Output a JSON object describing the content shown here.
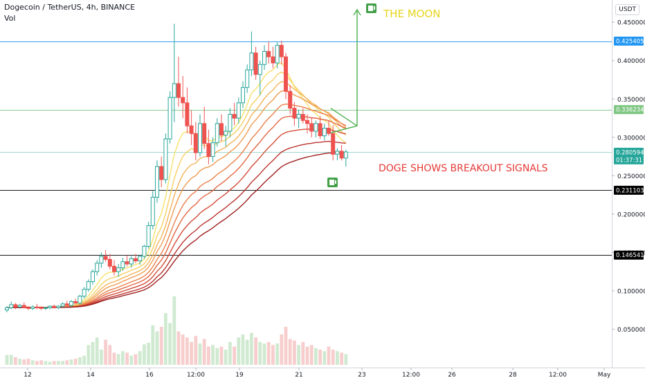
{
  "header": {
    "symbol_line": "Dogecoin / TetherUS, 4h, BINANCE",
    "volume_label": "Vol",
    "unit": "USDT"
  },
  "annotations": {
    "moon_label": "THE MOON",
    "breakout_label": "DOGE SHOWS BREAKOUT SIGNALS",
    "countdown": "01:37:31"
  },
  "colors": {
    "up": "#26a69a",
    "down": "#ef5350",
    "moon_text": "#e6d51b",
    "breakout_text": "#e53935",
    "arrow": "#4caf50",
    "line_blue": "#2196f3",
    "line_green": "#81c784",
    "line_black": "#000000",
    "ribbon": [
      "#f7e26b",
      "#f6cf62",
      "#f3b359",
      "#ef9a50",
      "#ea7f47",
      "#e2653f",
      "#d24a36",
      "#b9312c",
      "#9e1f1f"
    ]
  },
  "chart_data": {
    "type": "candlestick",
    "y_range": [
      0.0,
      0.47
    ],
    "y_ticks": [
      "0.4500000",
      "0.4000000",
      "0.3500000",
      "0.3000000",
      "0.2500000",
      "0.2000000",
      "0.1500000",
      "0.1000000",
      "0.0500000"
    ],
    "x_ticks": [
      "12",
      "14",
      "16",
      "12:00",
      "19",
      "21",
      "23",
      "12:00",
      "26",
      "28",
      "12:00",
      "May"
    ],
    "horizontal_levels": [
      {
        "price": 0.4254057,
        "label": "0.4254057",
        "color": "#2196f3"
      },
      {
        "price": 0.3362348,
        "label": "0.3362348",
        "color": "#81c784"
      },
      {
        "price": 0.2805949,
        "label": "0.2805949",
        "color": "#26a69a",
        "current": true
      },
      {
        "price": 0.2311036,
        "label": "0.2311036",
        "color": "#000000"
      },
      {
        "price": 0.1465415,
        "label": "0.1465415",
        "color": "#000000"
      }
    ],
    "candles": [
      [
        0.075,
        0.08,
        0.072,
        0.078
      ],
      [
        0.078,
        0.086,
        0.076,
        0.082
      ],
      [
        0.082,
        0.084,
        0.076,
        0.079
      ],
      [
        0.079,
        0.083,
        0.077,
        0.081
      ],
      [
        0.081,
        0.085,
        0.077,
        0.078
      ],
      [
        0.078,
        0.08,
        0.075,
        0.077
      ],
      [
        0.077,
        0.081,
        0.075,
        0.079
      ],
      [
        0.079,
        0.083,
        0.076,
        0.078
      ],
      [
        0.078,
        0.08,
        0.075,
        0.077
      ],
      [
        0.077,
        0.079,
        0.075,
        0.078
      ],
      [
        0.078,
        0.081,
        0.076,
        0.08
      ],
      [
        0.08,
        0.082,
        0.077,
        0.078
      ],
      [
        0.078,
        0.081,
        0.076,
        0.08
      ],
      [
        0.08,
        0.085,
        0.078,
        0.083
      ],
      [
        0.083,
        0.087,
        0.079,
        0.081
      ],
      [
        0.081,
        0.088,
        0.079,
        0.086
      ],
      [
        0.086,
        0.09,
        0.082,
        0.084
      ],
      [
        0.084,
        0.095,
        0.082,
        0.093
      ],
      [
        0.093,
        0.105,
        0.09,
        0.102
      ],
      [
        0.102,
        0.115,
        0.099,
        0.112
      ],
      [
        0.112,
        0.128,
        0.108,
        0.125
      ],
      [
        0.125,
        0.14,
        0.12,
        0.136
      ],
      [
        0.136,
        0.15,
        0.13,
        0.145
      ],
      [
        0.145,
        0.153,
        0.138,
        0.141
      ],
      [
        0.141,
        0.148,
        0.128,
        0.132
      ],
      [
        0.132,
        0.14,
        0.12,
        0.125
      ],
      [
        0.125,
        0.135,
        0.118,
        0.13
      ],
      [
        0.13,
        0.143,
        0.126,
        0.138
      ],
      [
        0.138,
        0.146,
        0.132,
        0.135
      ],
      [
        0.135,
        0.145,
        0.13,
        0.142
      ],
      [
        0.142,
        0.148,
        0.136,
        0.139
      ],
      [
        0.139,
        0.147,
        0.134,
        0.145
      ],
      [
        0.145,
        0.16,
        0.142,
        0.158
      ],
      [
        0.158,
        0.19,
        0.155,
        0.185
      ],
      [
        0.185,
        0.23,
        0.18,
        0.222
      ],
      [
        0.222,
        0.27,
        0.215,
        0.262
      ],
      [
        0.262,
        0.275,
        0.235,
        0.245
      ],
      [
        0.245,
        0.305,
        0.24,
        0.298
      ],
      [
        0.298,
        0.36,
        0.292,
        0.352
      ],
      [
        0.352,
        0.448,
        0.32,
        0.37
      ],
      [
        0.37,
        0.405,
        0.34,
        0.352
      ],
      [
        0.352,
        0.38,
        0.325,
        0.345
      ],
      [
        0.345,
        0.365,
        0.305,
        0.315
      ],
      [
        0.315,
        0.335,
        0.29,
        0.305
      ],
      [
        0.305,
        0.32,
        0.27,
        0.28
      ],
      [
        0.28,
        0.33,
        0.275,
        0.318
      ],
      [
        0.318,
        0.34,
        0.285,
        0.292
      ],
      [
        0.292,
        0.31,
        0.265,
        0.275
      ],
      [
        0.275,
        0.3,
        0.268,
        0.293
      ],
      [
        0.293,
        0.325,
        0.288,
        0.318
      ],
      [
        0.318,
        0.33,
        0.295,
        0.303
      ],
      [
        0.303,
        0.315,
        0.288,
        0.308
      ],
      [
        0.308,
        0.338,
        0.3,
        0.33
      ],
      [
        0.33,
        0.345,
        0.316,
        0.325
      ],
      [
        0.325,
        0.352,
        0.318,
        0.345
      ],
      [
        0.345,
        0.373,
        0.338,
        0.365
      ],
      [
        0.365,
        0.395,
        0.358,
        0.388
      ],
      [
        0.388,
        0.438,
        0.38,
        0.41
      ],
      [
        0.41,
        0.418,
        0.375,
        0.382
      ],
      [
        0.382,
        0.4,
        0.355,
        0.395
      ],
      [
        0.395,
        0.42,
        0.388,
        0.412
      ],
      [
        0.412,
        0.425,
        0.396,
        0.405
      ],
      [
        0.405,
        0.418,
        0.39,
        0.397
      ],
      [
        0.397,
        0.425,
        0.39,
        0.42
      ],
      [
        0.42,
        0.426,
        0.395,
        0.405
      ],
      [
        0.405,
        0.41,
        0.35,
        0.36
      ],
      [
        0.36,
        0.368,
        0.33,
        0.338
      ],
      [
        0.338,
        0.346,
        0.315,
        0.325
      ],
      [
        0.325,
        0.336,
        0.312,
        0.33
      ],
      [
        0.33,
        0.338,
        0.318,
        0.322
      ],
      [
        0.322,
        0.33,
        0.305,
        0.318
      ],
      [
        0.318,
        0.326,
        0.3,
        0.308
      ],
      [
        0.308,
        0.322,
        0.3,
        0.318
      ],
      [
        0.318,
        0.328,
        0.298,
        0.302
      ],
      [
        0.302,
        0.318,
        0.296,
        0.312
      ],
      [
        0.312,
        0.322,
        0.302,
        0.305
      ],
      [
        0.305,
        0.316,
        0.27,
        0.278
      ],
      [
        0.278,
        0.286,
        0.27,
        0.282
      ],
      [
        0.282,
        0.29,
        0.27,
        0.273
      ],
      [
        0.273,
        0.284,
        0.262,
        0.281
      ]
    ],
    "volume": [
      0.13,
      0.13,
      0.1,
      0.08,
      0.07,
      0.08,
      0.06,
      0.05,
      0.06,
      0.05,
      0.04,
      0.05,
      0.05,
      0.05,
      0.06,
      0.07,
      0.08,
      0.1,
      0.12,
      0.26,
      0.3,
      0.36,
      0.2,
      0.33,
      0.26,
      0.16,
      0.14,
      0.18,
      0.16,
      0.12,
      0.14,
      0.18,
      0.27,
      0.29,
      0.52,
      0.44,
      0.5,
      0.68,
      0.55,
      0.9,
      0.44,
      0.4,
      0.36,
      0.3,
      0.38,
      0.28,
      0.34,
      0.24,
      0.26,
      0.22,
      0.24,
      0.2,
      0.3,
      0.24,
      0.36,
      0.4,
      0.33,
      0.42,
      0.36,
      0.3,
      0.28,
      0.3,
      0.26,
      0.28,
      0.4,
      0.5,
      0.34,
      0.32,
      0.26,
      0.3,
      0.24,
      0.26,
      0.22,
      0.2,
      0.18,
      0.24,
      0.2,
      0.18,
      0.16,
      0.14
    ],
    "ribbon_ema_periods": [
      8,
      12,
      16,
      20,
      26,
      32,
      40,
      50,
      60
    ]
  }
}
